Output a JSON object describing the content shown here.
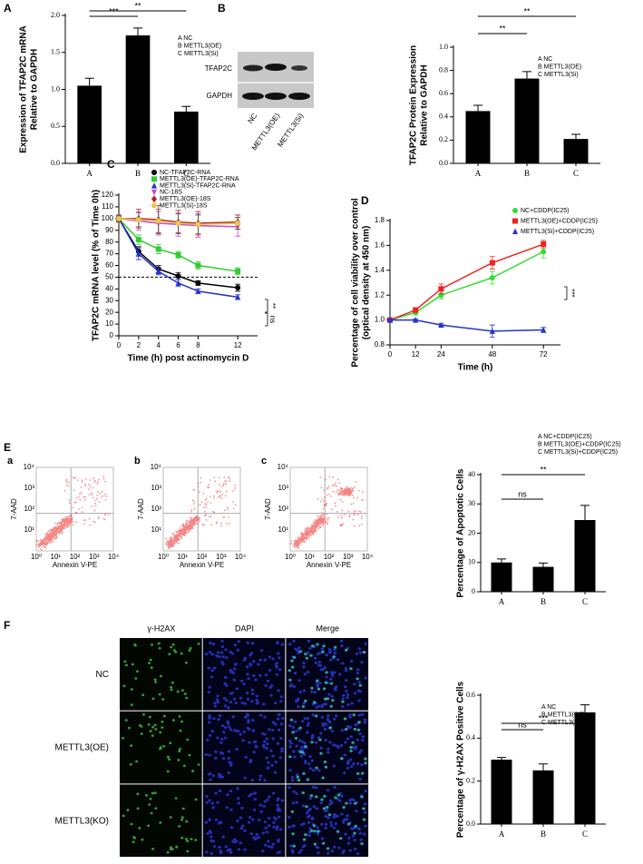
{
  "panel_letters": [
    "A",
    "B",
    "C",
    "D",
    "E",
    "F"
  ],
  "chart_data": [
    {
      "type": "bar",
      "ylabel": [
        "Expression of TFAP2C mRNA",
        "Relative to GAPDH"
      ],
      "categories": [
        "A",
        "B",
        "C"
      ],
      "values": [
        1.05,
        1.73,
        0.7
      ],
      "errors": [
        0.1,
        0.1,
        0.07
      ],
      "color": "#000000",
      "ylim": [
        0,
        2
      ],
      "yticks": [
        {
          "value": 0,
          "label": "0.0"
        },
        0.5,
        {
          "value": 1,
          "label": "1.0"
        },
        1.5,
        {
          "value": 2,
          "label": "2.0"
        }
      ],
      "legend": [
        "A NC",
        "B METTL3(OE)",
        "C METTL3(Si)"
      ],
      "annotations": [
        "***",
        "**"
      ]
    },
    {
      "type": "bar",
      "ylabel": [
        "TFAP2C Protein Expression",
        "Relative to GAPDH"
      ],
      "categories": [
        "A",
        "B",
        "C"
      ],
      "values": [
        0.45,
        0.73,
        0.21
      ],
      "errors": [
        0.05,
        0.06,
        0.04
      ],
      "color": "#000000",
      "ylim": [
        0,
        1
      ],
      "yticks": [
        {
          "value": 0,
          "label": "0.0"
        },
        0.2,
        0.4,
        0.6,
        0.8,
        {
          "value": 1,
          "label": "1.0"
        }
      ],
      "legend": [
        "A NC",
        "B METTL3(OE)",
        "C METTL3(Si)"
      ],
      "annotations": [
        "**",
        "**"
      ]
    },
    {
      "type": "line",
      "ylabel": [
        "TFAP2C mRNA level (% of Time 0h)"
      ],
      "xlabel": "Time (h) post actinomycin D",
      "x": [
        0,
        2,
        4,
        6,
        8,
        12
      ],
      "xlim": [
        0,
        14
      ],
      "xticks": [
        0,
        2,
        4,
        6,
        8,
        12
      ],
      "ylim": [
        0,
        120
      ],
      "yticks": [
        0,
        10,
        20,
        30,
        40,
        50,
        60,
        70,
        80,
        90,
        100,
        110,
        120
      ],
      "hline": 50,
      "series": [
        {
          "name": "NC-TFAP2C-RNA",
          "color": "#000000",
          "marker": "circle",
          "values": [
            100,
            72,
            57,
            51,
            45,
            41
          ],
          "errors": [
            2,
            4,
            3,
            3,
            2,
            3
          ]
        },
        {
          "name": "METTL3(OE)-TFAP2C-RNA",
          "color": "#33cc33",
          "marker": "square",
          "values": [
            100,
            82,
            74,
            69,
            60,
            55
          ],
          "errors": [
            2,
            4,
            4,
            3,
            3,
            3
          ]
        },
        {
          "name": "METTL3(Si)-TFAP2C-RNA",
          "color": "#2233cc",
          "marker": "triangle",
          "values": [
            100,
            70,
            55,
            45,
            38,
            33
          ],
          "errors": [
            2,
            5,
            3,
            3,
            2,
            2
          ]
        },
        {
          "name": "NC-18S",
          "color": "#cc44cc",
          "marker": "triangle-down",
          "values": [
            100,
            98,
            96,
            95,
            94,
            93
          ],
          "errors": [
            3,
            8,
            10,
            10,
            10,
            8
          ]
        },
        {
          "name": "METTL3(OE)-18S",
          "color": "#b22222",
          "marker": "diamond",
          "values": [
            100,
            100,
            99,
            97,
            96,
            97
          ],
          "errors": [
            3,
            8,
            12,
            10,
            10,
            6
          ]
        },
        {
          "name": "METTL3(Si)-18S",
          "color": "#e6c84a",
          "marker": "circle",
          "values": [
            100,
            99,
            98,
            96,
            95,
            96
          ],
          "errors": [
            2,
            6,
            10,
            8,
            8,
            5
          ]
        }
      ],
      "annotations": [
        "**",
        "ns"
      ]
    },
    {
      "type": "line",
      "ylabel": [
        "Percentage of cell viability over control",
        "(optical density at 450 nm)"
      ],
      "xlabel": "Time (h)",
      "x": [
        0,
        12,
        24,
        48,
        72
      ],
      "xlim": [
        0,
        80
      ],
      "xticks": [
        0,
        12,
        24,
        48,
        72
      ],
      "ylim": [
        0.8,
        1.8
      ],
      "yticks": [
        0.8,
        {
          "value": 1,
          "label": "1.0"
        },
        1.2,
        1.4,
        1.6,
        1.8
      ],
      "series": [
        {
          "name": "NC+CDDP(IC25)",
          "color": "#33dd33",
          "marker": "circle",
          "values": [
            1.0,
            1.06,
            1.2,
            1.34,
            1.55
          ],
          "errors": [
            0.01,
            0.02,
            0.03,
            0.05,
            0.05
          ]
        },
        {
          "name": "METTL3(OE)+CDDP(IC25)",
          "color": "#ee2222",
          "marker": "square",
          "values": [
            1.0,
            1.08,
            1.25,
            1.46,
            1.61
          ],
          "errors": [
            0.01,
            0.02,
            0.04,
            0.05,
            0.03
          ]
        },
        {
          "name": "METTL3(Si)+CDDP(IC25)",
          "color": "#2233cc",
          "marker": "triangle",
          "values": [
            1.0,
            1.0,
            0.96,
            0.91,
            0.92
          ],
          "errors": [
            0.01,
            0.01,
            0.01,
            0.05,
            0.02
          ]
        }
      ],
      "annotations": [
        "***"
      ]
    },
    {
      "type": "bar",
      "ylabel": [
        "Percentage of Apoptotic Cells"
      ],
      "categories": [
        "A",
        "B",
        "C"
      ],
      "values": [
        10,
        8.5,
        24.5
      ],
      "errors": [
        1.2,
        1.3,
        5
      ],
      "color": "#000000",
      "ylim": [
        0,
        40
      ],
      "yticks": [
        0,
        10,
        20,
        30,
        40
      ],
      "legend": [
        "A NC+CDDP(IC25)",
        "B METTL3(OE)+CDDP(IC25)",
        "C METTL3(Si)+CDDP(IC25)"
      ],
      "annotations": [
        "ns",
        "**"
      ]
    },
    {
      "type": "bar",
      "ylabel": [
        "Percentage of γ-H2AX Positive Cells"
      ],
      "categories": [
        "A",
        "B",
        "C"
      ],
      "values": [
        0.3,
        0.25,
        0.52
      ],
      "errors": [
        0.01,
        0.03,
        0.035
      ],
      "color": "#000000",
      "ylim": [
        0,
        0.6
      ],
      "yticks": [
        {
          "value": 0,
          "label": "0.0"
        },
        0.2,
        0.4,
        0.6
      ],
      "legend": [
        "A NC",
        "B METTL3(OE)",
        "C METTL3(Si)"
      ],
      "annotations": [
        "ns",
        "***"
      ]
    }
  ],
  "blot": {
    "rows": [
      "TFAP2C",
      "GAPDH"
    ],
    "lanes": [
      "NC",
      "METTL3(OE)",
      "METTL3(Si)"
    ]
  },
  "flow": {
    "panels": [
      "a",
      "b",
      "c"
    ],
    "ylabel": "7-AAD",
    "xlabel": "Annexin V-PE",
    "ticks": [
      "10⁰",
      "10¹",
      "10²",
      "10³",
      "10⁴"
    ]
  },
  "micrographs": {
    "columns": [
      "γ-H2AX",
      "DAPI",
      "Merge"
    ],
    "rows": [
      "NC",
      "METTL3(OE)",
      "METTL3(KO)"
    ]
  }
}
